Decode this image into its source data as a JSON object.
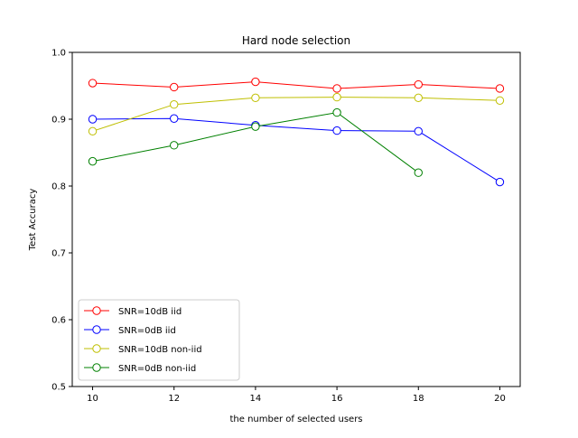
{
  "chart_data": {
    "type": "line",
    "title": "Hard node selection",
    "xlabel": "the number of selected users",
    "ylabel": "Test Accuracy",
    "xlim": [
      9.5,
      20.5
    ],
    "ylim": [
      0.5,
      1.0
    ],
    "xticks": [
      10,
      12,
      14,
      16,
      18,
      20
    ],
    "xtick_labels": [
      "10",
      "12",
      "14",
      "16",
      "18",
      "20"
    ],
    "yticks": [
      0.5,
      0.6,
      0.7,
      0.8,
      0.9,
      1.0
    ],
    "ytick_labels": [
      "0.5",
      "0.6",
      "0.7",
      "0.8",
      "0.9",
      "1.0"
    ],
    "grid": false,
    "legend_position": "lower-left",
    "series": [
      {
        "name": "SNR=10dB iid",
        "color": "#ff0000",
        "marker": "open-circle",
        "x": [
          10,
          12,
          14,
          16,
          18,
          20
        ],
        "y": [
          0.954,
          0.948,
          0.956,
          0.946,
          0.952,
          0.946
        ]
      },
      {
        "name": "SNR=0dB iid",
        "color": "#0000ff",
        "marker": "open-circle",
        "x": [
          10,
          12,
          14,
          16,
          18,
          20
        ],
        "y": [
          0.9,
          0.901,
          0.891,
          0.883,
          0.882,
          0.806
        ]
      },
      {
        "name": "SNR=10dB non-iid",
        "color": "#bfbf00",
        "marker": "open-circle",
        "x": [
          10,
          12,
          14,
          16,
          18,
          20
        ],
        "y": [
          0.882,
          0.922,
          0.932,
          0.933,
          0.932,
          0.928
        ]
      },
      {
        "name": "SNR=0dB non-iid",
        "color": "#008000",
        "marker": "open-circle",
        "x": [
          10,
          12,
          14,
          16,
          18
        ],
        "y": [
          0.837,
          0.861,
          0.889,
          0.91,
          0.82
        ]
      }
    ]
  }
}
